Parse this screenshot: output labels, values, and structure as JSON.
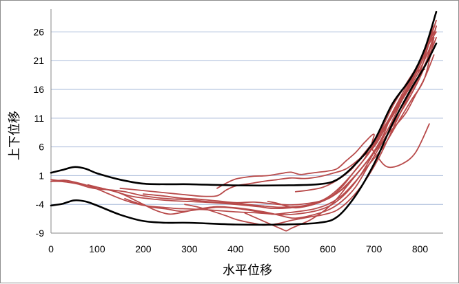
{
  "chart_data": {
    "type": "line",
    "title": "",
    "xlabel": "水平位移",
    "ylabel": "上下位移",
    "xlim": [
      0,
      850
    ],
    "ylim": [
      -9,
      30
    ],
    "x_ticks": [
      0,
      100,
      200,
      300,
      400,
      500,
      600,
      700,
      800
    ],
    "y_ticks": [
      -9,
      -4,
      1,
      6,
      11,
      16,
      21,
      26
    ],
    "grid": true,
    "legend": "none",
    "colors": {
      "envelope": "#000000",
      "samples": "#b84a4a",
      "grid": "#a6b8d8"
    },
    "envelope": [
      {
        "name": "",
        "points": [
          [
            0,
            1.5
          ],
          [
            25,
            2
          ],
          [
            50,
            2.5
          ],
          [
            75,
            2.2
          ],
          [
            100,
            1.4
          ],
          [
            150,
            0.3
          ],
          [
            200,
            -0.4
          ],
          [
            250,
            -0.5
          ],
          [
            300,
            -0.5
          ],
          [
            400,
            -0.7
          ],
          [
            500,
            -0.7
          ],
          [
            580,
            -0.5
          ],
          [
            620,
            0.3
          ],
          [
            660,
            3
          ],
          [
            700,
            7
          ],
          [
            740,
            13.5
          ],
          [
            780,
            18
          ],
          [
            810,
            23
          ],
          [
            835,
            29.5
          ]
        ]
      },
      {
        "name": "",
        "points": [
          [
            0,
            -4.2
          ],
          [
            25,
            -3.9
          ],
          [
            50,
            -3.3
          ],
          [
            75,
            -3.5
          ],
          [
            100,
            -4.2
          ],
          [
            150,
            -5.8
          ],
          [
            200,
            -6.9
          ],
          [
            250,
            -7.2
          ],
          [
            300,
            -7.2
          ],
          [
            400,
            -7.5
          ],
          [
            500,
            -7.5
          ],
          [
            580,
            -7.2
          ],
          [
            620,
            -6.2
          ],
          [
            660,
            -2.5
          ],
          [
            700,
            3
          ],
          [
            740,
            10
          ],
          [
            780,
            16
          ],
          [
            810,
            20
          ],
          [
            835,
            24
          ]
        ]
      }
    ],
    "samples": [
      {
        "name": "",
        "points": [
          [
            0,
            0
          ],
          [
            20,
            0
          ],
          [
            40,
            -0.2
          ],
          [
            60,
            -0.5
          ],
          [
            80,
            -1
          ],
          [
            100,
            -1.3
          ],
          [
            130,
            -1.5
          ],
          [
            160,
            -1.8
          ],
          [
            200,
            -2.5
          ],
          [
            250,
            -3
          ],
          [
            300,
            -3.2
          ],
          [
            350,
            -3.6
          ],
          [
            400,
            -3.8
          ],
          [
            450,
            -4.2
          ],
          [
            500,
            -4.5
          ],
          [
            550,
            -4.2
          ],
          [
            590,
            -3.2
          ],
          [
            620,
            -1.5
          ],
          [
            650,
            1
          ],
          [
            680,
            4
          ],
          [
            710,
            8
          ],
          [
            740,
            13
          ],
          [
            770,
            17
          ],
          [
            800,
            21
          ],
          [
            830,
            27
          ]
        ]
      },
      {
        "name": "",
        "points": [
          [
            0,
            0
          ],
          [
            30,
            0.2
          ],
          [
            60,
            -0.3
          ],
          [
            90,
            -1
          ],
          [
            120,
            -2
          ],
          [
            150,
            -3
          ],
          [
            180,
            -3.8
          ],
          [
            210,
            -4.3
          ],
          [
            240,
            -4.5
          ],
          [
            270,
            -4.7
          ],
          [
            300,
            -4.8
          ],
          [
            350,
            -5
          ],
          [
            400,
            -5.3
          ],
          [
            450,
            -5.5
          ],
          [
            500,
            -5.8
          ],
          [
            540,
            -5.6
          ],
          [
            580,
            -5
          ],
          [
            610,
            -4
          ],
          [
            640,
            -2
          ],
          [
            670,
            1
          ],
          [
            700,
            5
          ],
          [
            730,
            9
          ],
          [
            760,
            14
          ],
          [
            790,
            19
          ],
          [
            820,
            24
          ],
          [
            835,
            26
          ]
        ]
      },
      {
        "name": "",
        "points": [
          [
            0,
            0.3
          ],
          [
            30,
            0
          ],
          [
            70,
            -0.6
          ],
          [
            110,
            -1.2
          ],
          [
            140,
            -1.8
          ],
          [
            170,
            -2.5
          ],
          [
            200,
            -2.9
          ],
          [
            250,
            -3.3
          ],
          [
            300,
            -3.5
          ],
          [
            350,
            -3.7
          ],
          [
            400,
            -4
          ],
          [
            450,
            -4.4
          ],
          [
            480,
            -4.7
          ],
          [
            520,
            -4.6
          ],
          [
            560,
            -4.2
          ],
          [
            600,
            -3
          ],
          [
            630,
            -1
          ],
          [
            660,
            2
          ],
          [
            690,
            5
          ],
          [
            720,
            9
          ],
          [
            750,
            13
          ],
          [
            780,
            17
          ],
          [
            810,
            22
          ],
          [
            835,
            28
          ]
        ]
      },
      {
        "name": "",
        "points": [
          [
            150,
            -1.2
          ],
          [
            200,
            -1.6
          ],
          [
            250,
            -2
          ],
          [
            300,
            -2.4
          ],
          [
            330,
            -2.6
          ],
          [
            360,
            -2.5
          ],
          [
            380,
            -1.5
          ],
          [
            400,
            -0.8
          ],
          [
            430,
            -0.4
          ],
          [
            460,
            0
          ],
          [
            490,
            0.3
          ],
          [
            520,
            0.6
          ],
          [
            550,
            0.5
          ],
          [
            580,
            0.8
          ],
          [
            610,
            1.4
          ],
          [
            640,
            2.2
          ],
          [
            670,
            4
          ],
          [
            700,
            6
          ],
          [
            730,
            10
          ],
          [
            760,
            14
          ],
          [
            790,
            18
          ],
          [
            820,
            23
          ],
          [
            835,
            27
          ]
        ]
      },
      {
        "name": "",
        "points": [
          [
            360,
            -1.2
          ],
          [
            380,
            -0.3
          ],
          [
            400,
            0.4
          ],
          [
            420,
            0.7
          ],
          [
            440,
            0.9
          ],
          [
            470,
            1
          ],
          [
            500,
            1.4
          ],
          [
            520,
            1.6
          ],
          [
            540,
            1.2
          ],
          [
            560,
            1.4
          ],
          [
            580,
            1.6
          ],
          [
            600,
            1.8
          ],
          [
            620,
            2.2
          ],
          [
            640,
            3.6
          ],
          [
            660,
            5
          ],
          [
            680,
            6.8
          ],
          [
            700,
            8.2
          ],
          [
            695,
            6
          ],
          [
            710,
            4
          ],
          [
            730,
            2.5
          ],
          [
            760,
            3
          ],
          [
            790,
            5
          ],
          [
            820,
            10
          ]
        ]
      },
      {
        "name": "",
        "points": [
          [
            160,
            -3
          ],
          [
            180,
            -3.6
          ],
          [
            200,
            -4.1
          ],
          [
            220,
            -4.5
          ],
          [
            250,
            -4.8
          ],
          [
            280,
            -5.2
          ],
          [
            300,
            -5.1
          ],
          [
            330,
            -4.8
          ],
          [
            360,
            -4.5
          ],
          [
            390,
            -4.6
          ],
          [
            420,
            -4.9
          ],
          [
            450,
            -5.3
          ],
          [
            480,
            -5.7
          ],
          [
            510,
            -5.5
          ],
          [
            540,
            -5.2
          ],
          [
            570,
            -4.8
          ],
          [
            600,
            -4
          ],
          [
            630,
            -2.5
          ],
          [
            660,
            0
          ],
          [
            690,
            3
          ],
          [
            720,
            6
          ],
          [
            750,
            10
          ],
          [
            780,
            14
          ],
          [
            810,
            18
          ],
          [
            830,
            25
          ]
        ]
      },
      {
        "name": "",
        "points": [
          [
            80,
            -0.6
          ],
          [
            110,
            -1.2
          ],
          [
            140,
            -1.8
          ],
          [
            160,
            -2.4
          ],
          [
            180,
            -3.2
          ],
          [
            200,
            -4
          ],
          [
            220,
            -4.8
          ],
          [
            240,
            -5.4
          ],
          [
            260,
            -5.7
          ],
          [
            290,
            -5.3
          ],
          [
            320,
            -4.8
          ],
          [
            360,
            -4.4
          ],
          [
            400,
            -4.6
          ],
          [
            440,
            -5
          ],
          [
            480,
            -5.6
          ],
          [
            510,
            -6.2
          ],
          [
            530,
            -6.4
          ],
          [
            560,
            -6
          ],
          [
            600,
            -5
          ],
          [
            630,
            -3.5
          ],
          [
            660,
            -1
          ],
          [
            690,
            3
          ],
          [
            720,
            7
          ],
          [
            750,
            11
          ],
          [
            780,
            15
          ],
          [
            810,
            20
          ],
          [
            835,
            27
          ]
        ]
      },
      {
        "name": "",
        "points": [
          [
            290,
            -4
          ],
          [
            320,
            -4.5
          ],
          [
            350,
            -5.2
          ],
          [
            380,
            -6
          ],
          [
            400,
            -6.6
          ],
          [
            420,
            -7
          ],
          [
            440,
            -7.3
          ],
          [
            460,
            -7.6
          ],
          [
            480,
            -7.5
          ],
          [
            500,
            -7.2
          ],
          [
            520,
            -6.8
          ],
          [
            540,
            -6.5
          ],
          [
            560,
            -6.2
          ],
          [
            590,
            -5.8
          ],
          [
            620,
            -5
          ],
          [
            650,
            -3
          ],
          [
            680,
            0
          ],
          [
            710,
            4
          ],
          [
            740,
            9
          ],
          [
            770,
            14
          ],
          [
            800,
            19
          ],
          [
            830,
            27
          ]
        ]
      },
      {
        "name": "",
        "points": [
          [
            420,
            -5.5
          ],
          [
            440,
            -6.2
          ],
          [
            460,
            -6.9
          ],
          [
            480,
            -7.6
          ],
          [
            500,
            -8.3
          ],
          [
            510,
            -8.6
          ],
          [
            520,
            -8.2
          ],
          [
            540,
            -7.5
          ],
          [
            560,
            -6.8
          ],
          [
            580,
            -5.8
          ],
          [
            600,
            -4.6
          ],
          [
            620,
            -3
          ],
          [
            640,
            -1
          ],
          [
            660,
            1
          ],
          [
            690,
            4
          ],
          [
            720,
            8
          ],
          [
            740,
            12
          ],
          [
            770,
            16
          ],
          [
            800,
            21
          ],
          [
            830,
            26
          ]
        ]
      },
      {
        "name": "",
        "points": [
          [
            470,
            -3.5
          ],
          [
            490,
            -3.8
          ],
          [
            510,
            -4.3
          ],
          [
            530,
            -4.6
          ],
          [
            550,
            -4.4
          ],
          [
            570,
            -4
          ],
          [
            590,
            -3.4
          ],
          [
            610,
            -2.6
          ],
          [
            630,
            -1.4
          ],
          [
            650,
            0.2
          ],
          [
            670,
            2
          ],
          [
            690,
            4
          ],
          [
            710,
            6
          ],
          [
            730,
            8.2
          ],
          [
            750,
            10
          ],
          [
            770,
            12
          ],
          [
            790,
            15
          ],
          [
            810,
            18
          ],
          [
            830,
            22
          ]
        ]
      },
      {
        "name": "",
        "points": [
          [
            200,
            -2.2
          ],
          [
            240,
            -2.5
          ],
          [
            280,
            -2.9
          ],
          [
            320,
            -3.1
          ],
          [
            360,
            -3.4
          ],
          [
            400,
            -3.7
          ],
          [
            440,
            -3.6
          ],
          [
            480,
            -3.9
          ],
          [
            520,
            -4.1
          ],
          [
            560,
            -3.8
          ],
          [
            590,
            -3.3
          ],
          [
            610,
            -2.6
          ],
          [
            640,
            -0.8
          ],
          [
            670,
            2
          ],
          [
            700,
            5
          ],
          [
            730,
            9
          ],
          [
            760,
            13
          ],
          [
            790,
            17
          ],
          [
            820,
            22
          ],
          [
            835,
            25
          ]
        ]
      },
      {
        "name": "",
        "points": [
          [
            530,
            -1.8
          ],
          [
            560,
            -1.5
          ],
          [
            590,
            -1
          ],
          [
            620,
            0.2
          ],
          [
            650,
            2
          ],
          [
            670,
            4
          ],
          [
            690,
            6
          ],
          [
            710,
            8
          ],
          [
            730,
            10.5
          ],
          [
            750,
            13.5
          ],
          [
            770,
            16.5
          ],
          [
            790,
            19
          ],
          [
            810,
            19.5
          ]
        ]
      }
    ]
  }
}
